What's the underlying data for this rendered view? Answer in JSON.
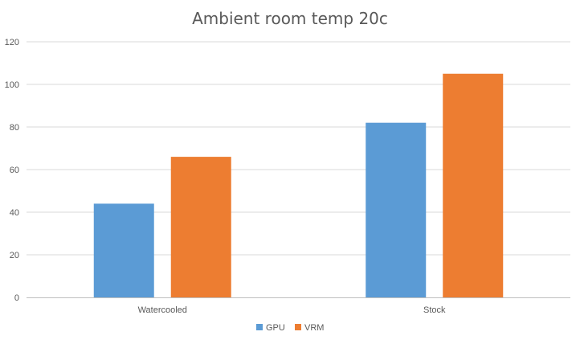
{
  "chart_data": {
    "type": "bar",
    "title": "Ambient room temp 20c",
    "xlabel": "",
    "ylabel": "",
    "categories": [
      "Watercooled",
      "Stock"
    ],
    "series": [
      {
        "name": "GPU",
        "values": [
          44,
          82
        ],
        "color": "#5b9bd5"
      },
      {
        "name": "VRM",
        "values": [
          66,
          105
        ],
        "color": "#ed7d31"
      }
    ],
    "ylim": [
      0,
      120
    ],
    "yticks": [
      0,
      20,
      40,
      60,
      80,
      100,
      120
    ],
    "grid": true,
    "legend": "bottom"
  }
}
